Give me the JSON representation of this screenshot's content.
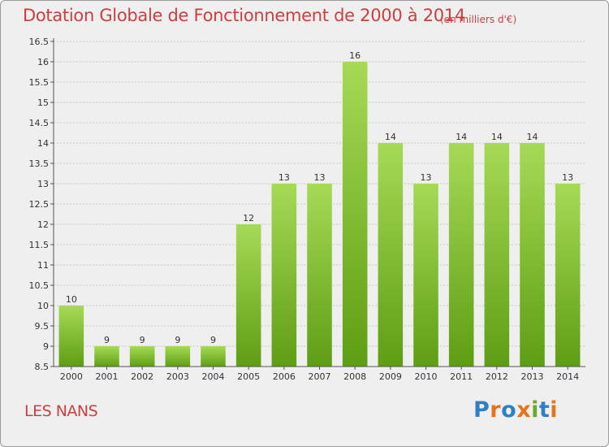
{
  "header": {
    "title": "Dotation Globale de Fonctionnement de 2000 à 2014",
    "unit": "(en milliers d'€)"
  },
  "footer": {
    "commune": "LES NANS",
    "logo_letters": [
      {
        "ch": "P",
        "color": "#2f7fc4"
      },
      {
        "ch": "r",
        "color": "#e8731a"
      },
      {
        "ch": "o",
        "color": "#2f7fc4"
      },
      {
        "ch": "x",
        "color": "#e8731a"
      },
      {
        "ch": "i",
        "color": "#6aaa2a"
      },
      {
        "ch": "t",
        "color": "#2f7fc4"
      },
      {
        "ch": "i",
        "color": "#e8731a"
      }
    ]
  },
  "colors": {
    "bar_top": "#a6da56",
    "bar_bottom": "#5e9e12",
    "grid": "#c4c4c4",
    "axis": "#555555",
    "title": "#cc3f3f"
  },
  "chart_data": {
    "type": "bar",
    "title": "Dotation Globale de Fonctionnement de 2000 à 2014",
    "xlabel": "",
    "ylabel": "",
    "categories": [
      "2000",
      "2001",
      "2002",
      "2003",
      "2004",
      "2005",
      "2006",
      "2007",
      "2008",
      "2009",
      "2010",
      "2011",
      "2012",
      "2013",
      "2014"
    ],
    "values": [
      10,
      9,
      9,
      9,
      9,
      12,
      13,
      13,
      16,
      14,
      13,
      14,
      14,
      14,
      13
    ],
    "value_labels": [
      "10",
      "9",
      "9",
      "9",
      "9",
      "12",
      "13",
      "13",
      "16",
      "14",
      "13",
      "14",
      "14",
      "14",
      "13"
    ],
    "ylim": [
      8.5,
      16.5
    ],
    "yticks": [
      8.5,
      9,
      9.5,
      10,
      10.5,
      11,
      11.5,
      12,
      12.5,
      13,
      13.5,
      14,
      14.5,
      15,
      15.5,
      16,
      16.5
    ],
    "grid": true,
    "legend": "none"
  }
}
